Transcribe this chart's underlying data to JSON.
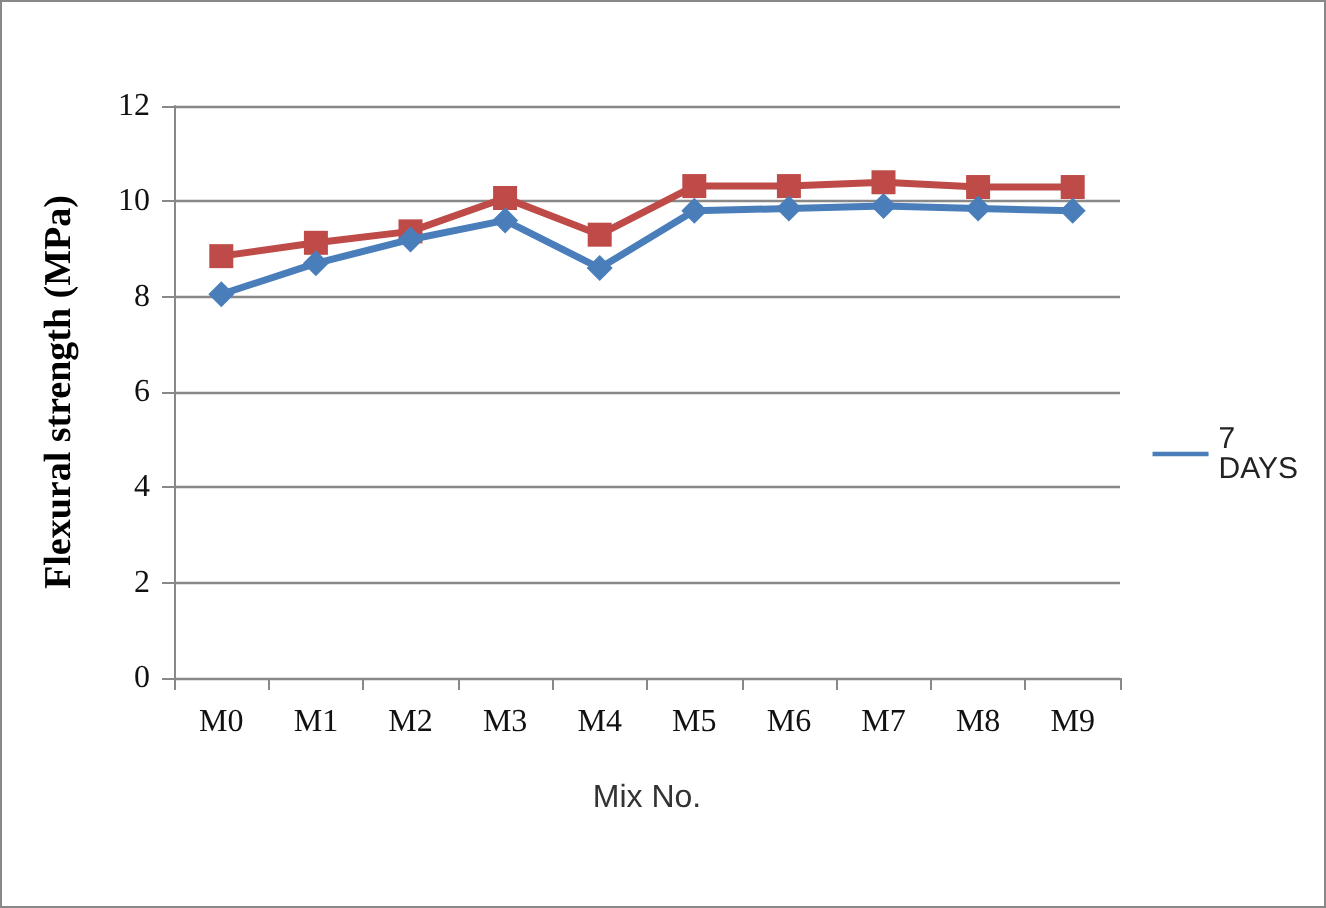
{
  "chart_data": {
    "type": "line",
    "xlabel": "Mix No.",
    "ylabel": "Flexural strength (MPa)",
    "categories": [
      "M0",
      "M1",
      "M2",
      "M3",
      "M4",
      "M5",
      "M6",
      "M7",
      "M8",
      "M9"
    ],
    "series": [
      {
        "name": "7 DAYS",
        "color": "#4a7ebb",
        "marker": "diamond",
        "values": [
          8.05,
          8.7,
          9.2,
          9.6,
          8.6,
          9.8,
          9.85,
          9.9,
          9.85,
          9.8
        ]
      },
      {
        "color": "#be4b48",
        "marker": "square",
        "values": [
          8.85,
          9.13,
          9.37,
          10.07,
          9.3,
          10.32,
          10.32,
          10.4,
          10.3,
          10.3
        ]
      }
    ],
    "ylim": [
      0,
      12
    ],
    "yticks": [
      0,
      2,
      4,
      6,
      8,
      10,
      12
    ],
    "grid": "y",
    "legend": "right"
  }
}
